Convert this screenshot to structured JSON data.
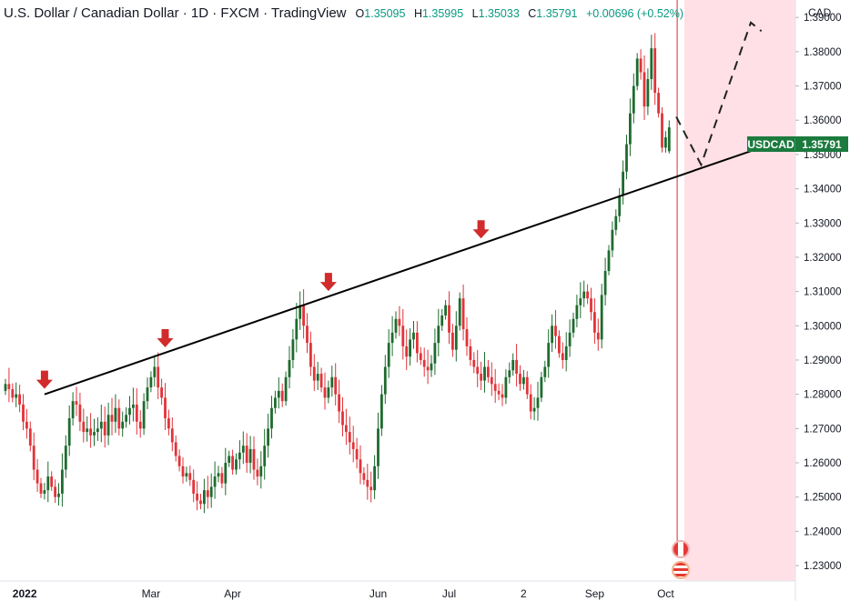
{
  "header": {
    "title": "U.S. Dollar / Canadian Dollar · 1D · FXCM · TradingView",
    "ohlc": [
      {
        "key": "O",
        "value": "1.35095"
      },
      {
        "key": "H",
        "value": "1.35995"
      },
      {
        "key": "L",
        "value": "1.35033"
      },
      {
        "key": "C",
        "value": "1.35791"
      },
      {
        "key": "",
        "value": "+0.00696 (+0.52%)"
      }
    ]
  },
  "axis": {
    "currency": "CAD",
    "price_label_symbol": "USDCAD",
    "price_label_value": "1.35791"
  },
  "colors": {
    "up": "#1e6b2f",
    "down": "#e0343a",
    "trendline": "#000000",
    "arrow": "#d12b2b",
    "forecast_zone": "#ffe0e6",
    "price_label": "#1b7a3e"
  },
  "chart_data": {
    "type": "candlestick",
    "title": "U.S. Dollar / Canadian Dollar · 1D · FXCM · TradingView",
    "xlabel": "",
    "ylabel": "CAD",
    "ylim": [
      1.2255,
      1.3935
    ],
    "y_ticks": [
      "1.39000",
      "1.38000",
      "1.37000",
      "1.36000",
      "1.35000",
      "1.34000",
      "1.33000",
      "1.32000",
      "1.31000",
      "1.30000",
      "1.29000",
      "1.28000",
      "1.27000",
      "1.26000",
      "1.25000",
      "1.24000",
      "1.23000"
    ],
    "x_ticks": [
      {
        "label": "2022",
        "index": 2
      },
      {
        "label": "Mar",
        "index": 41
      },
      {
        "label": "Apr",
        "index": 64
      },
      {
        "label": "Jun",
        "index": 105
      },
      {
        "label": "Jul",
        "index": 125
      },
      {
        "label": "2",
        "index": 146
      },
      {
        "label": "Sep",
        "index": 166
      },
      {
        "label": "Oct",
        "index": 186
      }
    ],
    "grid": false,
    "closes": [
      1.283,
      1.2815,
      1.279,
      1.28,
      1.277,
      1.272,
      1.27,
      1.265,
      1.258,
      1.254,
      1.251,
      1.252,
      1.256,
      1.253,
      1.25,
      1.251,
      1.258,
      1.265,
      1.273,
      1.278,
      1.277,
      1.272,
      1.269,
      1.27,
      1.268,
      1.269,
      1.27,
      1.272,
      1.268,
      1.274,
      1.272,
      1.276,
      1.27,
      1.272,
      1.274,
      1.276,
      1.277,
      1.272,
      1.27,
      1.278,
      1.282,
      1.285,
      1.288,
      1.282,
      1.279,
      1.273,
      1.27,
      1.266,
      1.262,
      1.259,
      1.256,
      1.257,
      1.255,
      1.251,
      1.249,
      1.248,
      1.252,
      1.25,
      1.253,
      1.256,
      1.257,
      1.254,
      1.26,
      1.262,
      1.258,
      1.261,
      1.263,
      1.265,
      1.26,
      1.264,
      1.258,
      1.256,
      1.259,
      1.265,
      1.27,
      1.276,
      1.279,
      1.281,
      1.278,
      1.285,
      1.29,
      1.296,
      1.302,
      1.306,
      1.3,
      1.295,
      1.288,
      1.284,
      1.286,
      1.282,
      1.279,
      1.282,
      1.285,
      1.28,
      1.275,
      1.271,
      1.269,
      1.266,
      1.264,
      1.261,
      1.257,
      1.255,
      1.253,
      1.252,
      1.259,
      1.27,
      1.28,
      1.288,
      1.295,
      1.298,
      1.302,
      1.3,
      1.294,
      1.291,
      1.296,
      1.298,
      1.292,
      1.29,
      1.288,
      1.287,
      1.289,
      1.295,
      1.3,
      1.303,
      1.306,
      1.298,
      1.293,
      1.3,
      1.308,
      1.299,
      1.294,
      1.29,
      1.288,
      1.286,
      1.284,
      1.288,
      1.285,
      1.283,
      1.281,
      1.28,
      1.279,
      1.285,
      1.287,
      1.29,
      1.286,
      1.283,
      1.285,
      1.28,
      1.275,
      1.276,
      1.279,
      1.285,
      1.288,
      1.295,
      1.3,
      1.297,
      1.292,
      1.29,
      1.294,
      1.298,
      1.302,
      1.306,
      1.308,
      1.31,
      1.308,
      1.304,
      1.298,
      1.296,
      1.309,
      1.316,
      1.322,
      1.328,
      1.332,
      1.338,
      1.345,
      1.353,
      1.362,
      1.37,
      1.378,
      1.374,
      1.364,
      1.372,
      1.381,
      1.368,
      1.362,
      1.352,
      1.355,
      1.3579
    ],
    "last_candle": {
      "open": 1.35095,
      "high": 1.35995,
      "low": 1.35033,
      "close": 1.35791
    },
    "annotations": {
      "trendline": {
        "from": {
          "index": 11,
          "price": 1.28
        },
        "to": {
          "index": 210,
          "price": 1.351
        }
      },
      "down_arrows_at_index": [
        11,
        45,
        91,
        134
      ],
      "forecast_path": [
        {
          "index": 189,
          "price": 1.361
        },
        {
          "index": 196,
          "price": 1.347
        },
        {
          "index": 210,
          "price": 1.3885
        },
        {
          "index": 213,
          "price": 1.386
        }
      ],
      "current_bar_index": 189
    }
  }
}
